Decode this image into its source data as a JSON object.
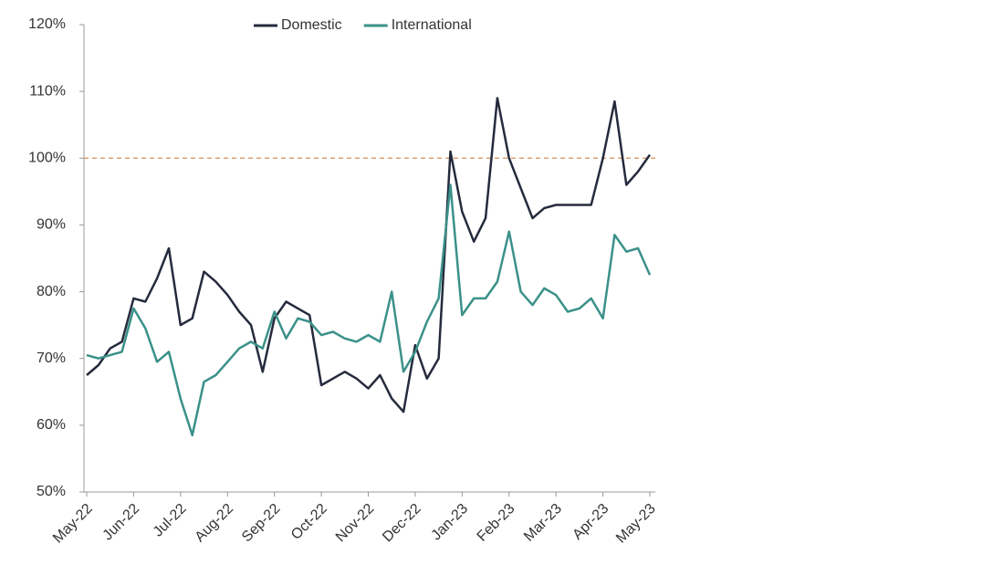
{
  "chart_data": {
    "type": "line",
    "categories": [
      "May-22",
      null,
      null,
      null,
      "Jun-22",
      null,
      null,
      null,
      "Jul-22",
      null,
      null,
      null,
      "Aug-22",
      null,
      null,
      null,
      "Sep-22",
      null,
      null,
      null,
      "Oct-22",
      null,
      null,
      null,
      "Nov-22",
      null,
      null,
      null,
      "Dec-22",
      null,
      null,
      null,
      "Jan-23",
      null,
      null,
      null,
      "Feb-23",
      null,
      null,
      null,
      "Mar-23",
      null,
      null,
      null,
      "Apr-23",
      null,
      null,
      null,
      "May-23"
    ],
    "series": [
      {
        "name": "Domestic",
        "color": "#252b3d",
        "values": [
          67.5,
          69,
          71.5,
          72.5,
          79,
          78.5,
          82,
          86.5,
          75,
          76,
          83,
          81.5,
          79.5,
          77,
          75,
          68,
          76,
          78.5,
          77.5,
          76.5,
          66,
          67,
          68,
          67,
          65.5,
          67.5,
          64,
          62,
          72,
          67,
          70,
          101,
          92,
          87.5,
          91,
          109,
          100,
          95.5,
          91,
          92.5,
          93,
          93,
          93,
          93,
          100,
          108.5,
          96,
          98,
          100.5
        ]
      },
      {
        "name": "International",
        "color": "#3a9189",
        "values": [
          70.5,
          70,
          70.5,
          71,
          77.5,
          74.5,
          69.5,
          71,
          64,
          58.5,
          66.5,
          67.5,
          69.5,
          71.5,
          72.5,
          71.5,
          77,
          73,
          76,
          75.5,
          73.5,
          74,
          73,
          72.5,
          73.5,
          72.5,
          80,
          68,
          71,
          75.5,
          79,
          96,
          76.5,
          79,
          79,
          81.5,
          89,
          80,
          78,
          80.5,
          79.5,
          77,
          77.5,
          79,
          76,
          88.5,
          86,
          86.5,
          82.5
        ]
      }
    ],
    "ylim": [
      50,
      120
    ],
    "yticks": [
      {
        "value": 50,
        "label": "50%"
      },
      {
        "value": 60,
        "label": "60%"
      },
      {
        "value": 70,
        "label": "70%"
      },
      {
        "value": 80,
        "label": "80%"
      },
      {
        "value": 90,
        "label": "90%"
      },
      {
        "value": 100,
        "label": "100%"
      },
      {
        "value": 110,
        "label": "110%"
      },
      {
        "value": 120,
        "label": "120%"
      }
    ],
    "grid": false,
    "legend": "top",
    "reference_line": {
      "value": 100,
      "color": "#e0a070"
    }
  }
}
